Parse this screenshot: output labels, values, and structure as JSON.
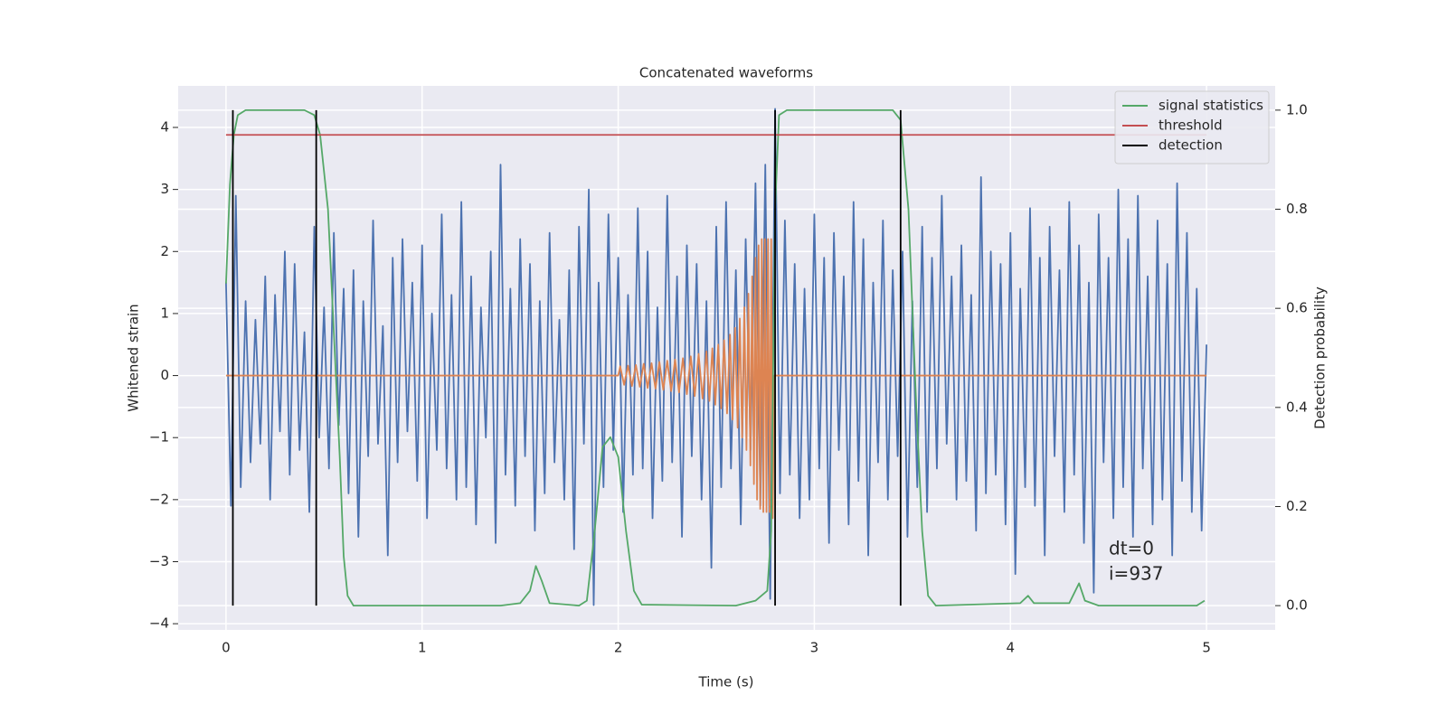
{
  "chart_data": {
    "type": "line",
    "title": "Concatenated waveforms",
    "xlabel": "Time (s)",
    "ylabel": "Whitened strain",
    "y2label": "Detection probability",
    "xlim": [
      -0.244,
      5.35
    ],
    "ylim": [
      -4.1,
      4.67
    ],
    "y2lim": [
      -0.049,
      1.049
    ],
    "xticks": [
      0,
      1,
      2,
      3,
      4,
      5
    ],
    "yticks": [
      {
        "value": -4,
        "label": "−4"
      },
      {
        "value": -3,
        "label": "−3"
      },
      {
        "value": -2,
        "label": "−2"
      },
      {
        "value": -1,
        "label": "−1"
      },
      0,
      1,
      2,
      3,
      4
    ],
    "y2ticks": [
      {
        "value": 0,
        "label": "0.0"
      },
      0.2,
      0.4,
      0.6,
      0.8,
      {
        "value": 1,
        "label": "1.0"
      }
    ],
    "grid": true,
    "legend": "upper right",
    "annotations": [
      "dt=0",
      "i=937"
    ],
    "series": [
      {
        "color": "#4c72b0",
        "x": [
          0,
          0.025,
          0.05,
          0.075,
          0.1,
          0.125,
          0.15,
          0.175,
          0.2,
          0.225,
          0.25,
          0.275,
          0.3,
          0.325,
          0.35,
          0.375,
          0.4,
          0.425,
          0.45,
          0.475,
          0.5,
          0.525,
          0.55,
          0.575,
          0.6,
          0.625,
          0.65,
          0.675,
          0.7,
          0.725,
          0.75,
          0.775,
          0.8,
          0.825,
          0.85,
          0.875,
          0.9,
          0.925,
          0.95,
          0.975,
          1,
          1.025,
          1.05,
          1.075,
          1.1,
          1.125,
          1.15,
          1.175,
          1.2,
          1.225,
          1.25,
          1.275,
          1.3,
          1.325,
          1.35,
          1.375,
          1.4,
          1.425,
          1.45,
          1.475,
          1.5,
          1.525,
          1.55,
          1.575,
          1.6,
          1.625,
          1.65,
          1.675,
          1.7,
          1.725,
          1.75,
          1.775,
          1.8,
          1.825,
          1.85,
          1.875,
          1.9,
          1.925,
          1.95,
          1.975,
          2,
          2.025,
          2.05,
          2.075,
          2.1,
          2.125,
          2.15,
          2.175,
          2.2,
          2.225,
          2.25,
          2.275,
          2.3,
          2.325,
          2.35,
          2.375,
          2.4,
          2.425,
          2.45,
          2.475,
          2.5,
          2.525,
          2.55,
          2.575,
          2.6,
          2.625,
          2.65,
          2.675,
          2.7,
          2.725,
          2.75,
          2.775,
          2.8,
          2.825,
          2.85,
          2.875,
          2.9,
          2.925,
          2.95,
          2.975,
          3,
          3.025,
          3.05,
          3.075,
          3.1,
          3.125,
          3.15,
          3.175,
          3.2,
          3.225,
          3.25,
          3.275,
          3.3,
          3.325,
          3.35,
          3.375,
          3.4,
          3.425,
          3.45,
          3.475,
          3.5,
          3.525,
          3.55,
          3.575,
          3.6,
          3.625,
          3.65,
          3.675,
          3.7,
          3.725,
          3.75,
          3.775,
          3.8,
          3.825,
          3.85,
          3.875,
          3.9,
          3.925,
          3.95,
          3.975,
          4,
          4.025,
          4.05,
          4.075,
          4.1,
          4.125,
          4.15,
          4.175,
          4.2,
          4.225,
          4.25,
          4.275,
          4.3,
          4.325,
          4.35,
          4.375,
          4.4,
          4.425,
          4.45,
          4.475,
          4.5,
          4.525,
          4.55,
          4.575,
          4.6,
          4.625,
          4.65,
          4.675,
          4.7,
          4.725,
          4.75,
          4.775,
          4.8,
          4.825,
          4.85,
          4.875,
          4.9,
          4.925,
          4.95,
          4.975,
          5
        ],
        "values": [
          1.5,
          -2.1,
          2.9,
          -1.8,
          1.2,
          -1.4,
          0.9,
          -1.1,
          1.6,
          -2.0,
          1.3,
          -0.9,
          2.0,
          -1.6,
          1.8,
          -1.2,
          0.7,
          -2.2,
          2.4,
          -1.0,
          1.1,
          -1.5,
          2.3,
          -0.8,
          1.4,
          -1.9,
          1.7,
          -2.6,
          1.2,
          -1.3,
          2.5,
          -1.1,
          0.8,
          -2.9,
          1.9,
          -1.4,
          2.2,
          -0.9,
          1.5,
          -1.7,
          2.1,
          -2.3,
          1.0,
          -1.2,
          2.6,
          -1.5,
          1.3,
          -2.0,
          2.8,
          -1.8,
          1.6,
          -2.4,
          1.1,
          -1.0,
          2.0,
          -2.7,
          3.4,
          -1.6,
          1.4,
          -2.1,
          2.2,
          -1.3,
          1.8,
          -2.5,
          1.2,
          -1.9,
          2.3,
          -1.4,
          0.9,
          -2.0,
          1.7,
          -2.8,
          2.4,
          -1.1,
          3.0,
          -3.7,
          1.5,
          -1.8,
          2.6,
          -1.2,
          1.9,
          -2.2,
          1.3,
          -1.6,
          2.7,
          -1.5,
          2.0,
          -2.3,
          1.1,
          -1.7,
          2.9,
          -1.4,
          1.6,
          -2.6,
          2.1,
          -1.3,
          1.8,
          -2.0,
          1.2,
          -3.1,
          2.4,
          -1.8,
          2.8,
          -1.5,
          1.7,
          -2.4,
          2.2,
          -1.2,
          3.1,
          -2.1,
          3.4,
          -3.6,
          4.3,
          -1.9,
          2.5,
          -1.6,
          1.8,
          -2.3,
          1.4,
          -2.0,
          2.6,
          -1.5,
          1.9,
          -2.7,
          2.3,
          -1.2,
          1.6,
          -2.4,
          2.8,
          -1.7,
          2.2,
          -2.9,
          1.5,
          -1.4,
          2.5,
          -2.0,
          1.7,
          -1.3,
          2.0,
          -2.6,
          1.2,
          -1.8,
          2.4,
          -2.2,
          1.9,
          -1.5,
          2.9,
          -1.1,
          1.6,
          -2.0,
          2.1,
          -1.7,
          1.3,
          -2.5,
          3.2,
          -1.9,
          2.0,
          -1.6,
          1.8,
          -2.4,
          2.3,
          -3.2,
          1.4,
          -1.8,
          2.7,
          -2.1,
          1.9,
          -2.9,
          2.4,
          -1.3,
          1.7,
          -2.2,
          2.8,
          -1.6,
          2.1,
          -2.7,
          1.5,
          -3.5,
          2.6,
          -1.4,
          1.9,
          -2.3,
          3.0,
          -1.8,
          2.2,
          -2.6,
          2.9,
          -1.5,
          1.6,
          -2.4,
          2.5,
          -2.0,
          1.8,
          -2.9,
          3.1,
          -1.7,
          2.3,
          -2.2,
          1.4,
          -2.5,
          0.5
        ]
      },
      {
        "color": "#dd8452",
        "x": [
          0,
          2.0,
          2.01,
          2.03,
          2.05,
          2.07,
          2.09,
          2.11,
          2.13,
          2.15,
          2.17,
          2.19,
          2.21,
          2.23,
          2.25,
          2.27,
          2.29,
          2.31,
          2.33,
          2.35,
          2.37,
          2.39,
          2.41,
          2.43,
          2.45,
          2.465,
          2.48,
          2.495,
          2.51,
          2.525,
          2.54,
          2.555,
          2.57,
          2.583,
          2.596,
          2.609,
          2.62,
          2.632,
          2.643,
          2.654,
          2.664,
          2.674,
          2.683,
          2.692,
          2.7,
          2.708,
          2.716,
          2.724,
          2.732,
          2.74,
          2.748,
          2.756,
          2.764,
          2.772,
          2.78,
          2.788,
          2.796,
          5
        ],
        "values": [
          0,
          0,
          0.15,
          -0.15,
          0.16,
          -0.17,
          0.17,
          -0.18,
          0.19,
          -0.2,
          0.2,
          -0.21,
          0.22,
          -0.23,
          0.24,
          -0.25,
          0.26,
          -0.27,
          0.28,
          -0.3,
          0.31,
          -0.33,
          0.35,
          -0.37,
          0.39,
          -0.41,
          0.44,
          -0.47,
          0.5,
          -0.53,
          0.57,
          -0.61,
          0.66,
          -0.71,
          0.77,
          -0.84,
          0.92,
          -1.0,
          1.1,
          -1.2,
          1.32,
          -1.45,
          1.6,
          -1.75,
          1.9,
          -2.0,
          2.1,
          -2.15,
          2.2,
          -2.2,
          2.2,
          -2.2,
          2.2,
          -2.2,
          2.2,
          -2.3,
          0,
          0
        ]
      },
      {
        "name": "signal statistics",
        "color": "#55a868",
        "axis": "y2",
        "x": [
          0,
          0.02,
          0.04,
          0.06,
          0.1,
          0.4,
          0.45,
          0.48,
          0.52,
          0.55,
          0.58,
          0.6,
          0.62,
          0.65,
          1.4,
          1.5,
          1.55,
          1.58,
          1.61,
          1.65,
          1.8,
          1.84,
          1.88,
          1.92,
          1.96,
          2.0,
          2.04,
          2.08,
          2.12,
          2.6,
          2.7,
          2.76,
          2.78,
          2.8,
          2.82,
          2.86,
          3.4,
          3.44,
          3.48,
          3.52,
          3.55,
          3.58,
          3.62,
          4.05,
          4.09,
          4.12,
          4.3,
          4.35,
          4.38,
          4.45,
          4.95,
          4.99
        ],
        "values": [
          0.65,
          0.85,
          0.95,
          0.99,
          1.0,
          1.0,
          0.99,
          0.95,
          0.8,
          0.55,
          0.3,
          0.1,
          0.02,
          0.0,
          0.0,
          0.005,
          0.03,
          0.08,
          0.05,
          0.005,
          0.0,
          0.01,
          0.15,
          0.32,
          0.34,
          0.3,
          0.15,
          0.03,
          0.002,
          0.0,
          0.01,
          0.03,
          0.15,
          0.8,
          0.99,
          1.0,
          1.0,
          0.98,
          0.8,
          0.4,
          0.15,
          0.02,
          0.0,
          0.005,
          0.02,
          0.005,
          0.005,
          0.045,
          0.01,
          0.0,
          0.0,
          0.01
        ]
      },
      {
        "name": "threshold",
        "color": "#c44e52",
        "axis": "y2",
        "x": [
          0,
          5
        ],
        "values": [
          0.95,
          0.95
        ]
      },
      {
        "name": "detection",
        "color": "#000000",
        "axis": "y2",
        "type": "vlines",
        "x": [
          0.035,
          0.46,
          2.8,
          3.44
        ],
        "span": [
          0,
          1
        ]
      }
    ]
  }
}
